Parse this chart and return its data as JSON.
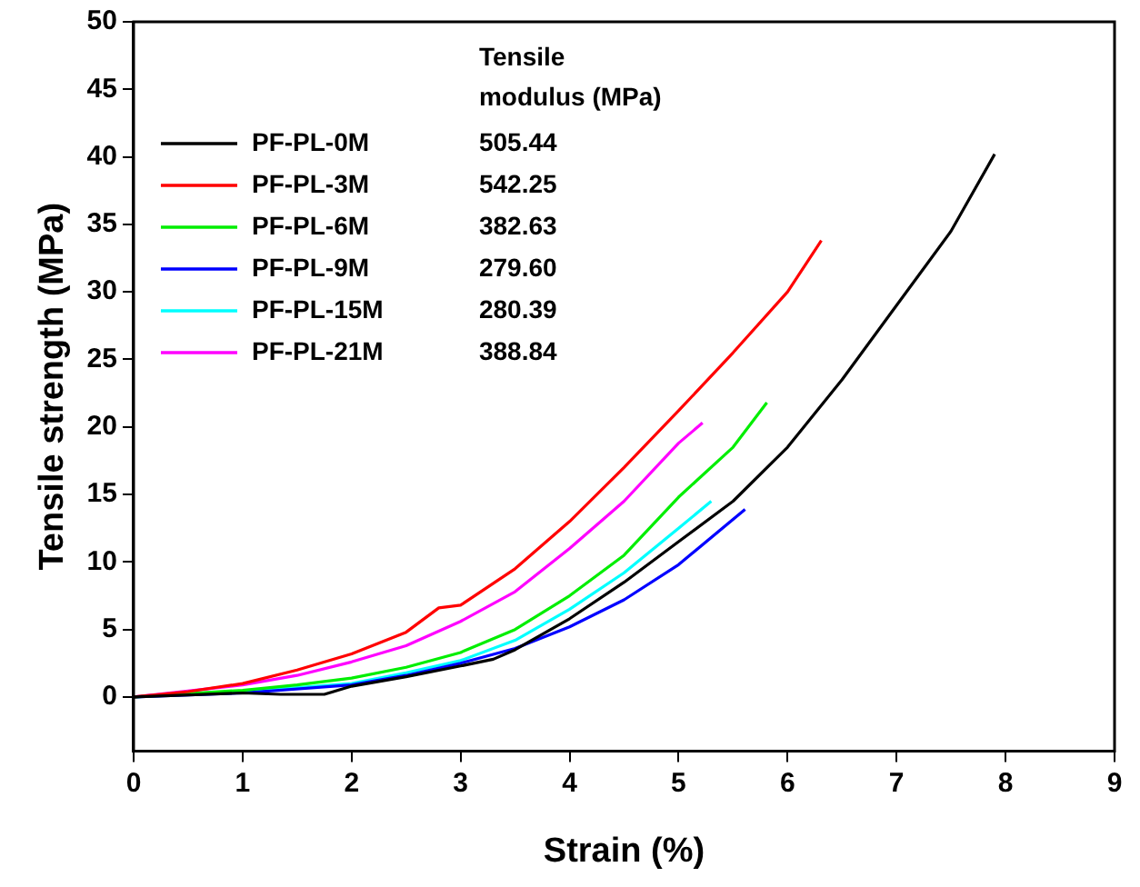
{
  "chart_data": {
    "type": "line",
    "xlabel": "Strain (%)",
    "ylabel": "Tensile strength (MPa)",
    "legend_title": "Tensile modulus (MPa)",
    "legend": "top left",
    "grid": false,
    "marker": "none",
    "line_style": "solid",
    "xlim": [
      0,
      9
    ],
    "xticks": [
      0,
      1,
      2,
      3,
      4,
      5,
      6,
      7,
      8,
      9
    ],
    "ylim": [
      -4,
      50
    ],
    "yticks": [
      0,
      5,
      10,
      15,
      20,
      25,
      30,
      35,
      40,
      45,
      50
    ],
    "annotations": [
      "505.44",
      "542.25",
      "382.63",
      "279.60",
      "280.39",
      "388.84"
    ],
    "series": [
      {
        "name": "PF-PL-0M",
        "color": "#000000",
        "x": [
          0,
          1,
          1.35,
          1.75,
          2,
          2.5,
          3,
          3.3,
          3.5,
          4,
          4.5,
          5,
          5.5,
          6,
          6.5,
          7,
          7.5,
          7.9
        ],
        "values": [
          0,
          0.3,
          0.2,
          0.2,
          0.8,
          1.5,
          2.3,
          2.8,
          3.5,
          5.8,
          8.5,
          11.5,
          14.5,
          18.5,
          23.5,
          29,
          34.5,
          40.2
        ]
      },
      {
        "name": "PF-PL-3M",
        "color": "#ff0000",
        "x": [
          0,
          0.5,
          1,
          1.5,
          2,
          2.5,
          2.8,
          3,
          3.5,
          4,
          4.5,
          5,
          5.5,
          6,
          6.31
        ],
        "values": [
          0,
          0.4,
          1,
          2,
          3.2,
          4.8,
          6.6,
          6.8,
          9.5,
          13,
          17,
          21.2,
          25.5,
          30,
          33.8
        ]
      },
      {
        "name": "PF-PL-6M",
        "color": "#00ee00",
        "x": [
          0,
          1,
          1.5,
          2,
          2.5,
          3,
          3.5,
          4,
          4.5,
          5,
          5.5,
          5.81
        ],
        "values": [
          0,
          0.5,
          0.9,
          1.4,
          2.2,
          3.3,
          5,
          7.5,
          10.5,
          14.8,
          18.5,
          21.8
        ]
      },
      {
        "name": "PF-PL-9M",
        "color": "#0000ff",
        "x": [
          0,
          1,
          2,
          2.5,
          3,
          3.5,
          4,
          4.5,
          5,
          5.61
        ],
        "values": [
          0,
          0.3,
          0.9,
          1.6,
          2.5,
          3.6,
          5.2,
          7.2,
          9.8,
          13.9
        ]
      },
      {
        "name": "PF-PL-15M",
        "color": "#00ffff",
        "x": [
          0,
          1,
          2,
          2.5,
          3,
          3.5,
          4,
          4.5,
          5,
          5.3
        ],
        "values": [
          0,
          0.4,
          1,
          1.8,
          2.7,
          4.2,
          6.5,
          9.2,
          12.5,
          14.5
        ]
      },
      {
        "name": "PF-PL-21M",
        "color": "#ff00ff",
        "x": [
          0,
          1,
          1.5,
          2,
          2.5,
          3,
          3.5,
          4,
          4.5,
          5,
          5.22
        ],
        "values": [
          0,
          0.9,
          1.6,
          2.6,
          3.8,
          5.6,
          7.8,
          11,
          14.5,
          18.8,
          20.3
        ]
      }
    ]
  }
}
